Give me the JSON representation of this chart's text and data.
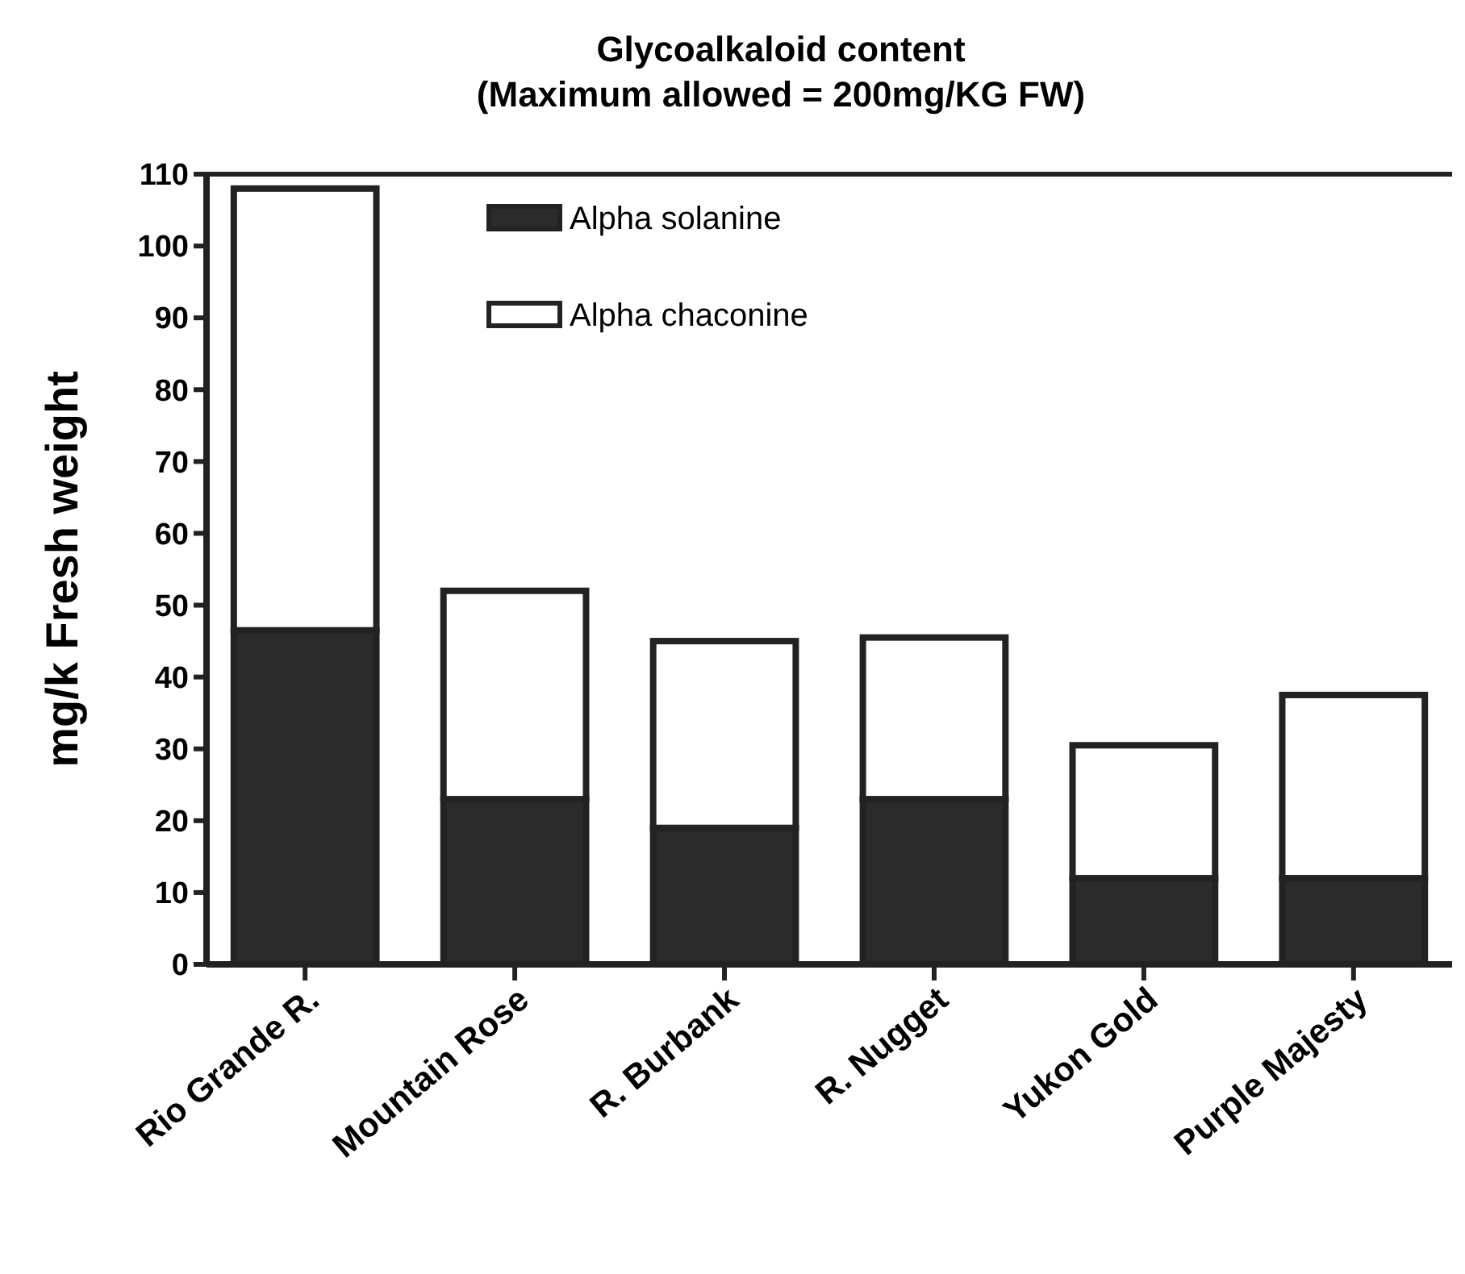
{
  "chart_data": {
    "type": "bar",
    "title": "Glycoalkaloid content",
    "subtitle": "(Maximum allowed = 200mg/KG FW)",
    "ylabel": "mg/k Fresh weight",
    "categories": [
      "Rio Grande R.",
      "Mountain Rose",
      "R. Burbank",
      "R. Nugget",
      "Yukon Gold",
      "Purple Majesty"
    ],
    "stacked": true,
    "series": [
      {
        "name": "Alpha solanine",
        "color": "#2b2b2b",
        "values": [
          46.5,
          23,
          19,
          23,
          12,
          12
        ]
      },
      {
        "name": "Alpha chaconine",
        "color": "#ffffff",
        "values": [
          61.5,
          29,
          26,
          22.5,
          18.5,
          25.5
        ]
      }
    ],
    "ylim": [
      0,
      110
    ],
    "yticks": [
      0,
      10,
      20,
      30,
      40,
      50,
      60,
      70,
      80,
      90,
      100,
      110
    ],
    "grid": false,
    "legend": "top"
  }
}
